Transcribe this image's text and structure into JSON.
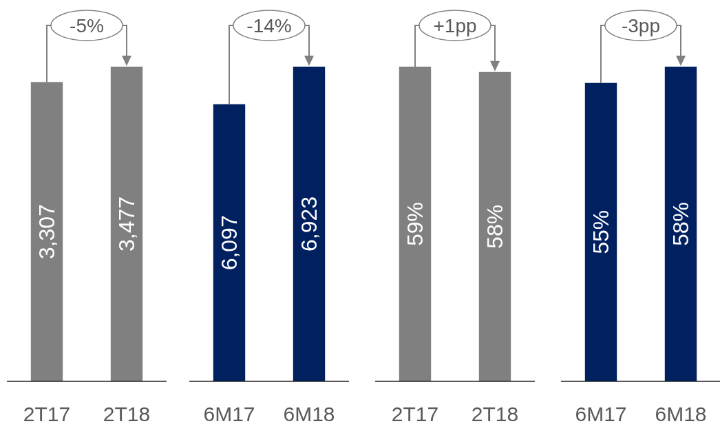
{
  "chart_data": [
    {
      "type": "bar",
      "categories": [
        "2T17",
        "2T18"
      ],
      "values": [
        3307,
        3477
      ],
      "value_labels": [
        "3,307",
        "3,477"
      ],
      "color": "#808080",
      "tick_labels": "x",
      "annotations": [
        "-5%"
      ]
    },
    {
      "type": "bar",
      "categories": [
        "6M17",
        "6M18"
      ],
      "values": [
        6097,
        6923
      ],
      "value_labels": [
        "6,097",
        "6,923"
      ],
      "color": "#002060",
      "tick_labels": "x",
      "annotations": [
        "-14%"
      ]
    },
    {
      "type": "bar",
      "categories": [
        "2T17",
        "2T18"
      ],
      "values": [
        59,
        58
      ],
      "value_labels": [
        "59%",
        "58%"
      ],
      "color": "#808080",
      "tick_labels": "x",
      "annotations": [
        "+1pp"
      ]
    },
    {
      "type": "bar",
      "categories": [
        "6M17",
        "6M18"
      ],
      "values": [
        55,
        58
      ],
      "value_labels": [
        "55%",
        "58%"
      ],
      "color": "#002060",
      "tick_labels": "x",
      "annotations": [
        "-3pp"
      ]
    }
  ]
}
